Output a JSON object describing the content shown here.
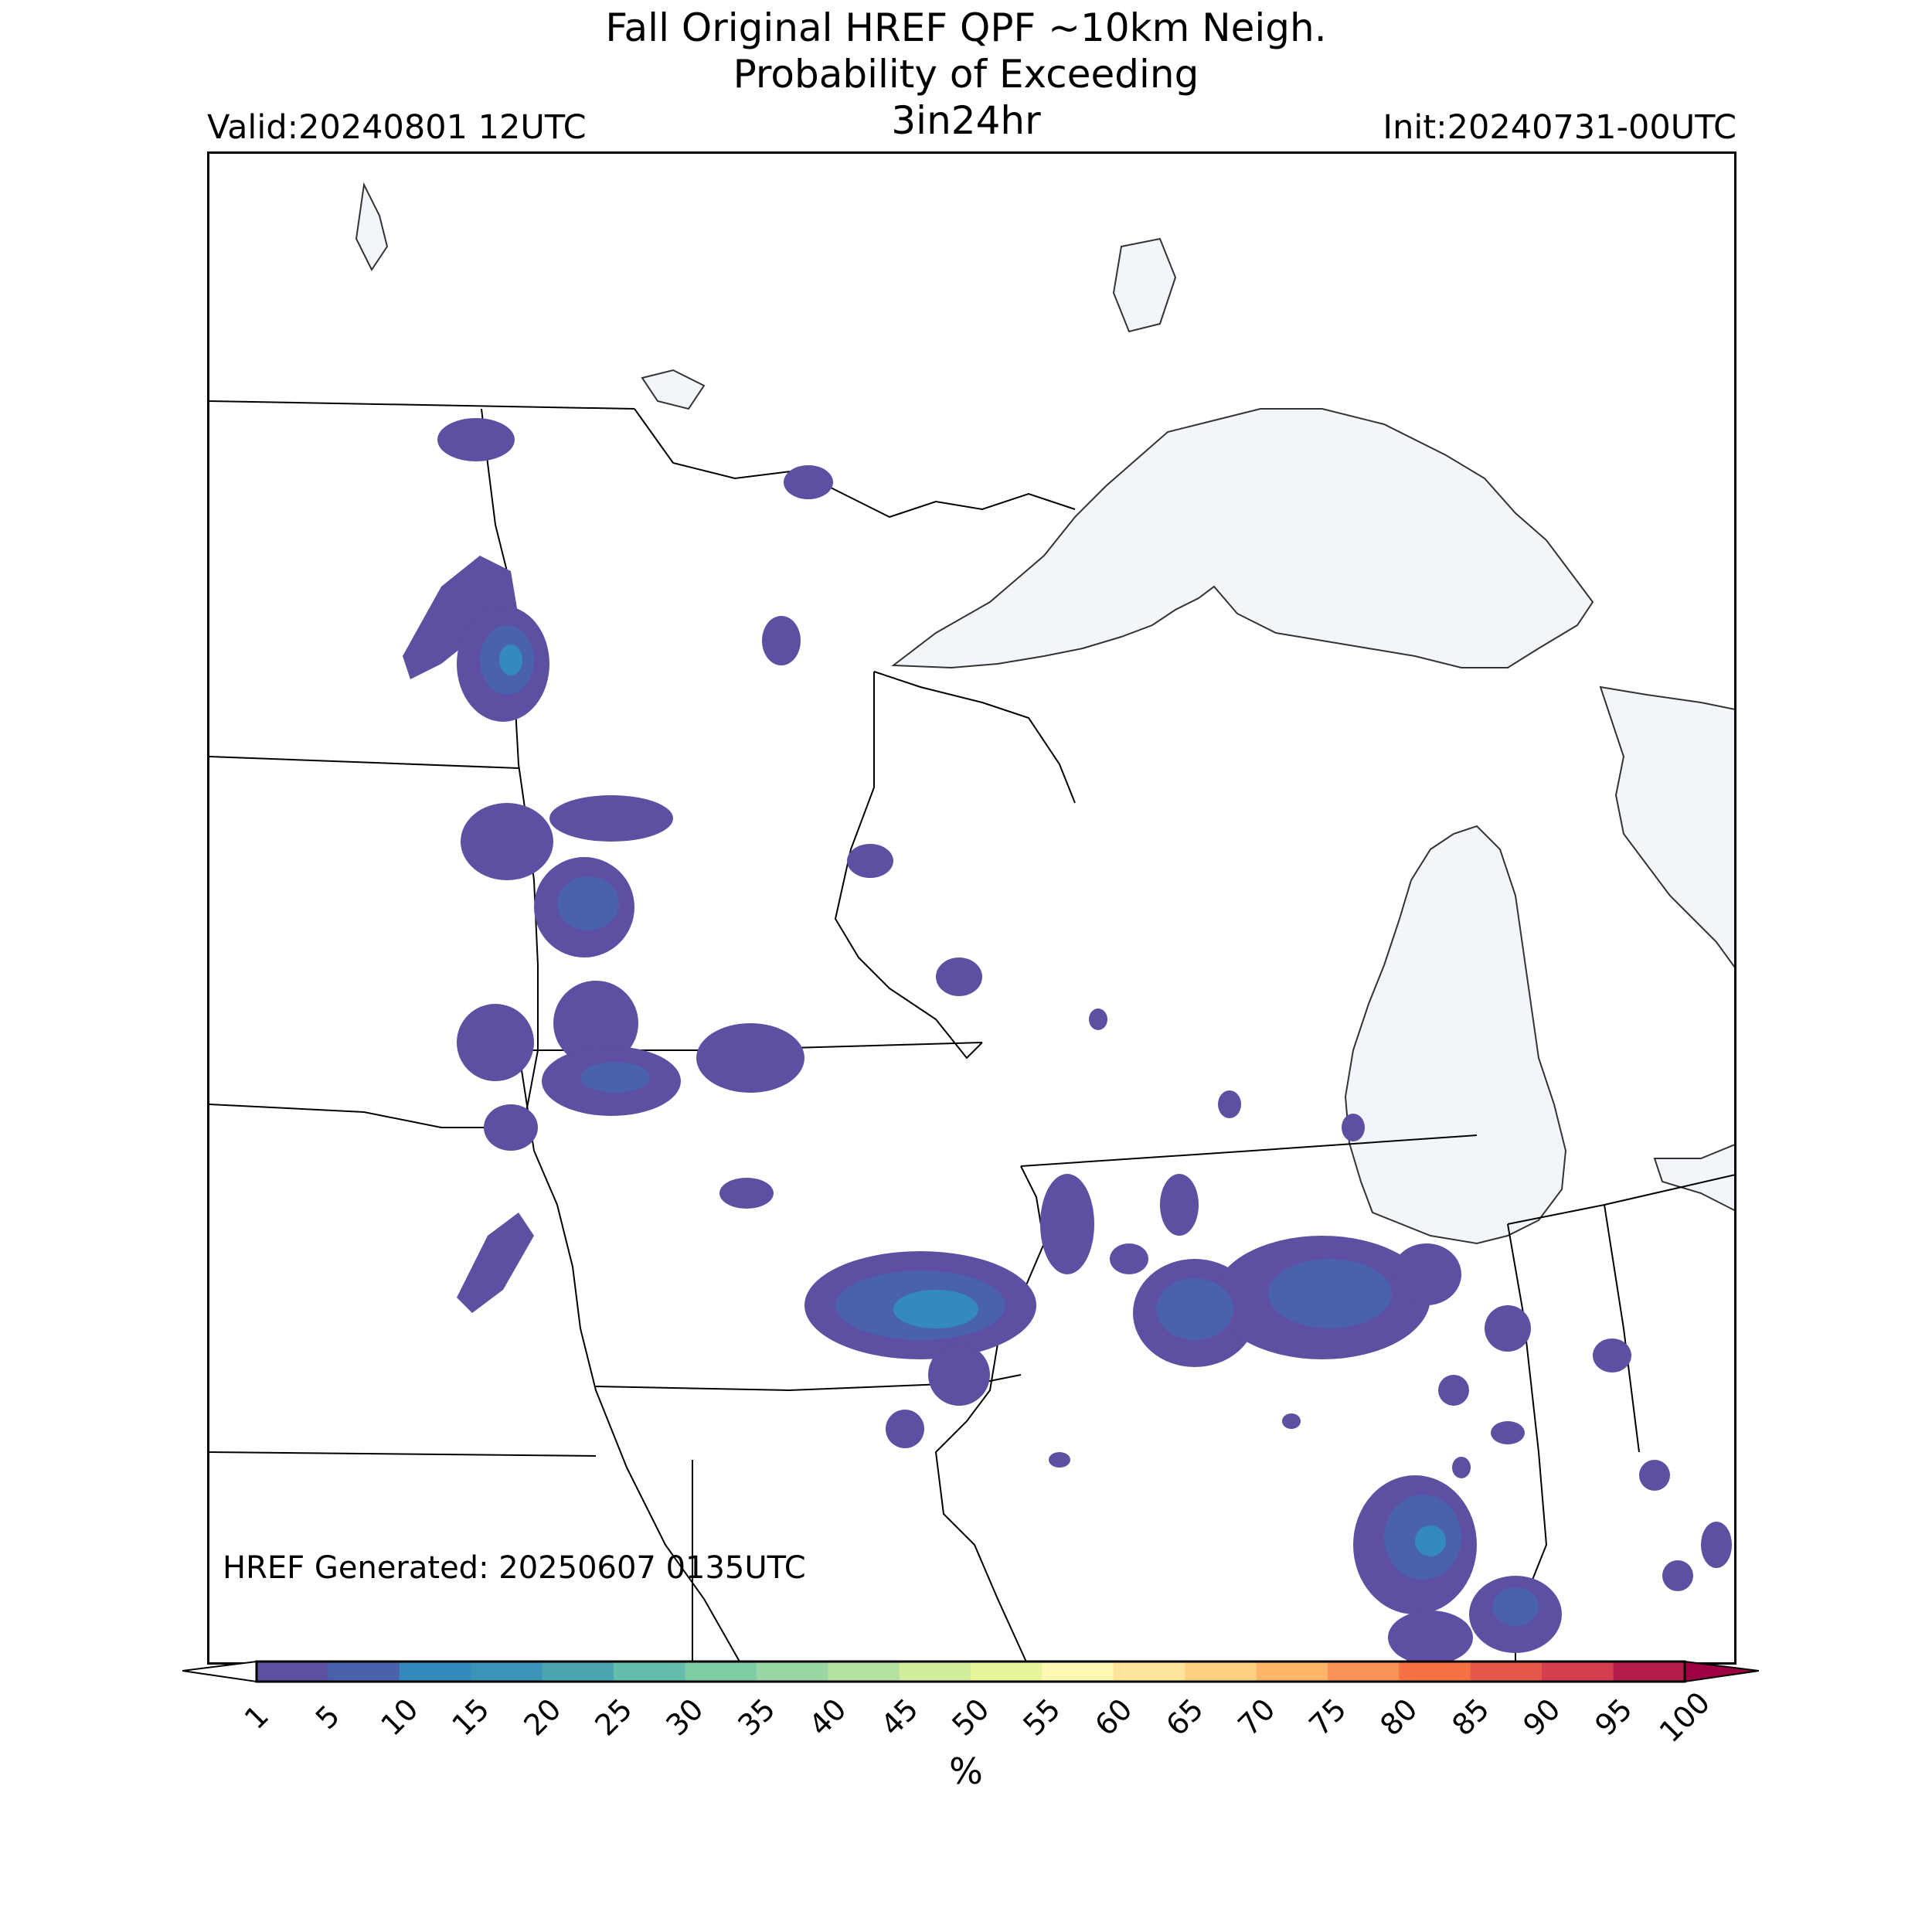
{
  "title": {
    "line1": "Fall Original HREF QPF ~10km Neigh.",
    "line2": "Probability of Exceeding",
    "line3": "3in24hr"
  },
  "valid_label": "Valid:20240801 12UTC",
  "init_label": "Init:20240731-00UTC",
  "generated_label": "HREF Generated: 20250607 0135UTC",
  "colorbar": {
    "units": "%",
    "ticks": [
      "1",
      "5",
      "10",
      "15",
      "20",
      "25",
      "30",
      "35",
      "40",
      "45",
      "50",
      "55",
      "60",
      "65",
      "70",
      "75",
      "80",
      "85",
      "90",
      "95",
      "100"
    ],
    "colors": [
      "#5e4fa2",
      "#4a62ac",
      "#3489bd",
      "#3b93b8",
      "#4ba5b1",
      "#64bcab",
      "#7fcba4",
      "#9ad6a4",
      "#b5e1a1",
      "#d2ed9b",
      "#e8f59b",
      "#fdf8b2",
      "#fee49a",
      "#fdd081",
      "#fdb567",
      "#f99254",
      "#f47245",
      "#e55749",
      "#d53e4f",
      "#b51d4b",
      "#9e0142"
    ],
    "extend_colors": {
      "under": "#ffffff",
      "over": "#9e0142"
    }
  },
  "colors": {
    "lake_fill": "#f2f5fa",
    "border": "#000000",
    "prob_low": "#5e4fa2",
    "prob_mid": "#4a62ac",
    "prob_high": "#3489bd"
  }
}
